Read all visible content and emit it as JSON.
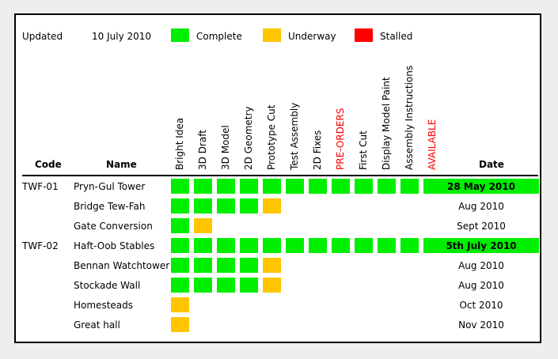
{
  "legend": {
    "updated_label": "Updated",
    "updated_date": "10 July 2010",
    "complete_label": "Complete",
    "underway_label": "Underway",
    "stalled_label": "Stalled"
  },
  "colors": {
    "complete": "#00ee00",
    "underway": "#ffc600",
    "stalled": "#ff0000",
    "highlight_text": "#ff0000"
  },
  "columns": {
    "code": "Code",
    "name": "Name",
    "date": "Date",
    "stages": [
      {
        "label": "Bright Idea",
        "highlight": false
      },
      {
        "label": "3D Draft",
        "highlight": false
      },
      {
        "label": "3D Model",
        "highlight": false
      },
      {
        "label": "2D Geometry",
        "highlight": false
      },
      {
        "label": "Prototype Cut",
        "highlight": false
      },
      {
        "label": "Test Assembly",
        "highlight": false
      },
      {
        "label": "2D Fixes",
        "highlight": false
      },
      {
        "label": "PRE-ORDERS",
        "highlight": true
      },
      {
        "label": "First Cut",
        "highlight": false
      },
      {
        "label": "Display Model Paint",
        "highlight": false
      },
      {
        "label": "Assembly Instructions",
        "highlight": false
      },
      {
        "label": "AVAILABLE",
        "highlight": true
      }
    ]
  },
  "rows": [
    {
      "code": "TWF-01",
      "name": "Pryn-Gul Tower",
      "date": "28 May 2010",
      "available": true,
      "stages": [
        "complete",
        "complete",
        "complete",
        "complete",
        "complete",
        "complete",
        "complete",
        "complete",
        "complete",
        "complete",
        "complete"
      ]
    },
    {
      "code": "",
      "name": "Bridge Tew-Fah",
      "date": "Aug 2010",
      "available": false,
      "stages": [
        "complete",
        "complete",
        "complete",
        "complete",
        "underway"
      ]
    },
    {
      "code": "",
      "name": "Gate Conversion",
      "date": "Sept 2010",
      "available": false,
      "stages": [
        "complete",
        "underway"
      ]
    },
    {
      "code": "TWF-02",
      "name": "Haft-Oob Stables",
      "date": "5th July 2010",
      "available": true,
      "stages": [
        "complete",
        "complete",
        "complete",
        "complete",
        "complete",
        "complete",
        "complete",
        "complete",
        "complete",
        "complete",
        "complete"
      ]
    },
    {
      "code": "",
      "name": "Bennan Watchtower",
      "date": "Aug 2010",
      "available": false,
      "stages": [
        "complete",
        "complete",
        "complete",
        "complete",
        "underway"
      ]
    },
    {
      "code": "",
      "name": "Stockade Wall",
      "date": "Aug 2010",
      "available": false,
      "stages": [
        "complete",
        "complete",
        "complete",
        "complete",
        "underway"
      ]
    },
    {
      "code": "",
      "name": "Homesteads",
      "date": "Oct 2010",
      "available": false,
      "stages": [
        "underway"
      ]
    },
    {
      "code": "",
      "name": "Great hall",
      "date": "Nov 2010",
      "available": false,
      "stages": [
        "underway"
      ]
    }
  ]
}
